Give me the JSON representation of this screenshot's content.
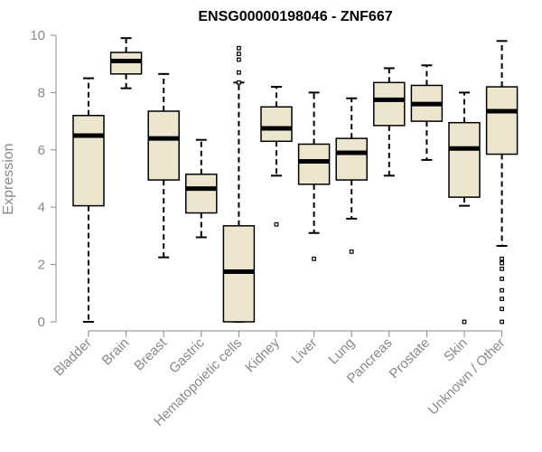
{
  "chart_data": {
    "type": "boxplot",
    "title": "ENSG00000198046 - ZNF667",
    "xlabel": "",
    "ylabel": "Expression",
    "ylim": [
      0,
      10
    ],
    "yticks": [
      0,
      2,
      4,
      6,
      8,
      10
    ],
    "grid": false,
    "legend": "none",
    "colors": {
      "box_fill": "#ede6cf",
      "box_stroke": "#000000",
      "median": "#000000",
      "axis": "#888888",
      "text": "#888888"
    },
    "categories": [
      "Bladder",
      "Brain",
      "Breast",
      "Gastric",
      "Hematopoietic cells",
      "Kidney",
      "Liver",
      "Lung",
      "Pancreas",
      "Prostate",
      "Skin",
      "Unknown / Other"
    ],
    "boxes": [
      {
        "category": "Bladder",
        "whisker_low": 0.0,
        "q1": 4.05,
        "median": 6.5,
        "q3": 7.2,
        "whisker_high": 8.5,
        "outliers": []
      },
      {
        "category": "Brain",
        "whisker_low": 8.15,
        "q1": 8.65,
        "median": 9.1,
        "q3": 9.4,
        "whisker_high": 9.9,
        "outliers": []
      },
      {
        "category": "Breast",
        "whisker_low": 2.25,
        "q1": 4.95,
        "median": 6.4,
        "q3": 7.35,
        "whisker_high": 8.65,
        "outliers": []
      },
      {
        "category": "Gastric",
        "whisker_low": 2.95,
        "q1": 3.8,
        "median": 4.65,
        "q3": 5.15,
        "whisker_high": 6.35,
        "outliers": []
      },
      {
        "category": "Hematopoietic cells",
        "whisker_low": 0.0,
        "q1": 0.0,
        "median": 1.75,
        "q3": 3.35,
        "whisker_high": 8.35,
        "outliers": [
          8.35,
          8.7,
          9.15,
          9.35,
          9.55
        ]
      },
      {
        "category": "Kidney",
        "whisker_low": 5.1,
        "q1": 6.3,
        "median": 6.75,
        "q3": 7.5,
        "whisker_high": 8.2,
        "outliers": [
          3.4
        ]
      },
      {
        "category": "Liver",
        "whisker_low": 3.1,
        "q1": 4.8,
        "median": 5.6,
        "q3": 6.2,
        "whisker_high": 8.0,
        "outliers": [
          2.2
        ]
      },
      {
        "category": "Lung",
        "whisker_low": 3.6,
        "q1": 4.95,
        "median": 5.9,
        "q3": 6.4,
        "whisker_high": 7.8,
        "outliers": [
          2.45
        ]
      },
      {
        "category": "Pancreas",
        "whisker_low": 5.1,
        "q1": 6.85,
        "median": 7.75,
        "q3": 8.35,
        "whisker_high": 8.85,
        "outliers": []
      },
      {
        "category": "Prostate",
        "whisker_low": 5.65,
        "q1": 7.0,
        "median": 7.6,
        "q3": 8.25,
        "whisker_high": 8.95,
        "outliers": []
      },
      {
        "category": "Skin",
        "whisker_low": 4.05,
        "q1": 4.35,
        "median": 6.05,
        "q3": 6.95,
        "whisker_high": 8.0,
        "outliers": [
          0.0
        ]
      },
      {
        "category": "Unknown / Other",
        "whisker_low": 2.65,
        "q1": 5.85,
        "median": 7.35,
        "q3": 8.2,
        "whisker_high": 9.8,
        "outliers": [
          0.0,
          0.45,
          0.8,
          1.1,
          1.5,
          1.85,
          2.05,
          2.2
        ]
      }
    ]
  }
}
